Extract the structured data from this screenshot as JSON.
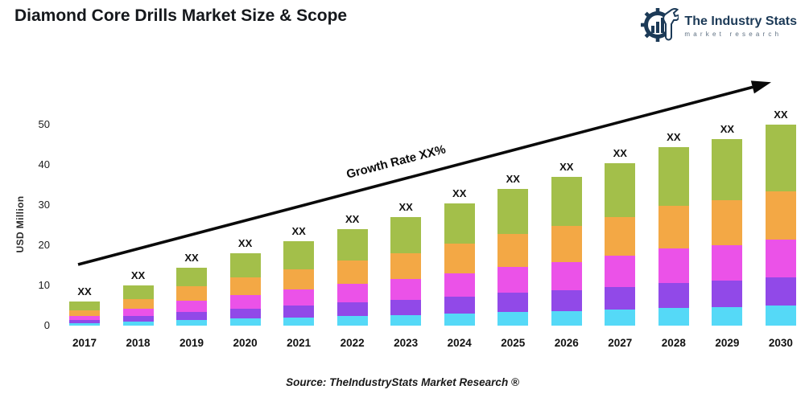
{
  "header": {
    "title": "Diamond Core Drills Market Size & Scope"
  },
  "logo": {
    "name": "The Industry Stats",
    "tagline": "market research",
    "color": "#1c3a57"
  },
  "chart_data": {
    "type": "bar",
    "stacked": true,
    "ylabel": "USD Million",
    "xlabel": "",
    "ylim": [
      0,
      50
    ],
    "yticks": [
      0,
      10,
      20,
      30,
      40,
      50
    ],
    "gridlines": false,
    "legend": "none",
    "categories": [
      "2017",
      "2018",
      "2019",
      "2020",
      "2021",
      "2022",
      "2023",
      "2024",
      "2025",
      "2026",
      "2027",
      "2028",
      "2029",
      "2030"
    ],
    "bar_top_label": "XX",
    "series": [
      {
        "name": "series-cyan-bottom",
        "color": "#55d9f7",
        "values": [
          0.6,
          1.0,
          1.5,
          1.8,
          2.1,
          2.4,
          2.7,
          3.0,
          3.4,
          3.7,
          4.0,
          4.5,
          4.7,
          5.0
        ]
      },
      {
        "name": "series-purple",
        "color": "#9149e8",
        "values": [
          0.8,
          1.4,
          2.0,
          2.5,
          2.9,
          3.4,
          3.8,
          4.3,
          4.8,
          5.2,
          5.7,
          6.2,
          6.5,
          7.0
        ]
      },
      {
        "name": "series-magenta",
        "color": "#eb52e8",
        "values": [
          1.1,
          1.9,
          2.8,
          3.4,
          4.0,
          4.6,
          5.1,
          5.8,
          6.5,
          7.0,
          7.7,
          8.5,
          8.8,
          9.5
        ]
      },
      {
        "name": "series-orange",
        "color": "#f3a845",
        "values": [
          1.4,
          2.4,
          3.5,
          4.3,
          5.0,
          5.8,
          6.5,
          7.3,
          8.2,
          8.9,
          9.7,
          10.7,
          11.2,
          12.0
        ]
      },
      {
        "name": "series-green-top",
        "color": "#a3bf4a",
        "values": [
          2.1,
          3.3,
          4.7,
          6.0,
          7.0,
          7.8,
          8.9,
          10.1,
          11.1,
          12.2,
          13.4,
          14.6,
          15.3,
          16.5
        ]
      }
    ],
    "totals_estimated": [
      6.0,
      10.0,
      14.5,
      18.0,
      21.0,
      24.0,
      27.0,
      30.5,
      34.0,
      37.0,
      40.5,
      44.5,
      46.5,
      50.0
    ],
    "annotation": {
      "growth_label": "Growth Rate XX%"
    }
  },
  "footer": {
    "source": "Source: TheIndustryStats Market Research ®"
  }
}
